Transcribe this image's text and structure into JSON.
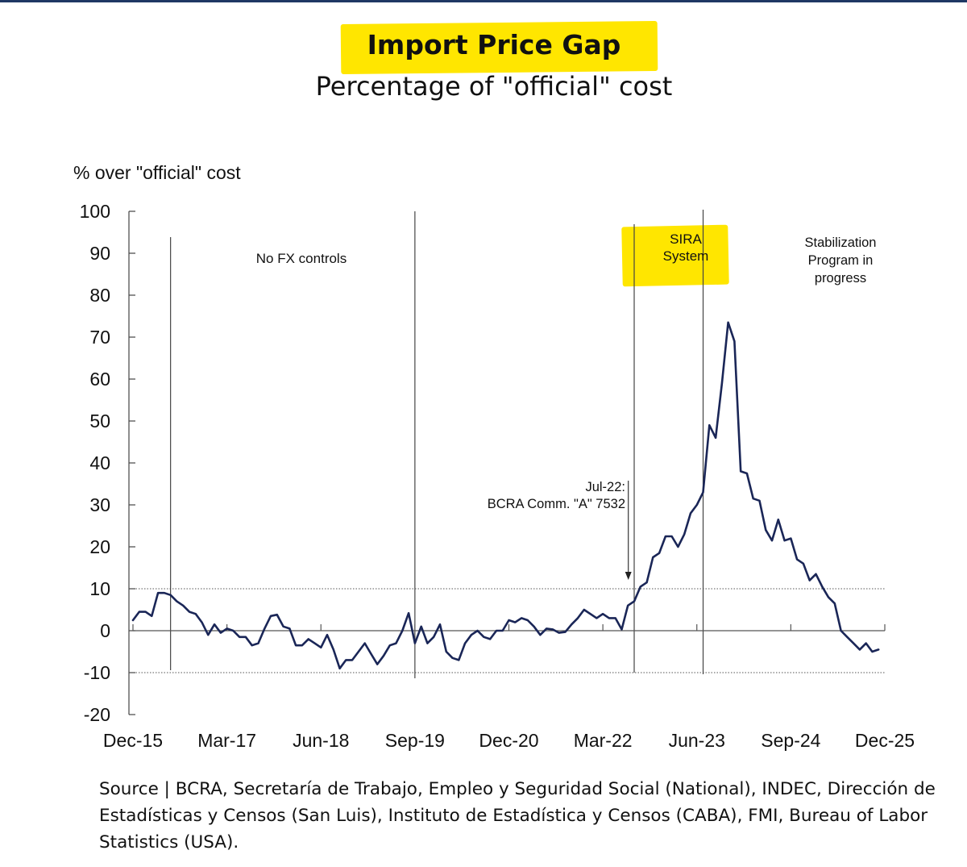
{
  "chart_data": {
    "type": "line",
    "title": "Import Price Gap",
    "subtitle": "Percentage of \"official\" cost",
    "ylabel": "% over \"official\" cost",
    "xlabel": "",
    "ylim": [
      -20,
      100
    ],
    "y_ticks": [
      100,
      90,
      80,
      70,
      60,
      50,
      40,
      30,
      20,
      10,
      0,
      -10,
      -20
    ],
    "x_tick_labels": [
      "Dec-15",
      "Mar-17",
      "Jun-18",
      "Sep-19",
      "Dec-20",
      "Mar-22",
      "Jun-23",
      "Sep-24",
      "Dec-25"
    ],
    "x_range_months": [
      0,
      120
    ],
    "reference_lines": [
      10,
      -10
    ],
    "period_dividers_months": [
      6,
      45,
      80,
      91
    ],
    "regions": [
      {
        "name": "no-fx",
        "label": "No FX controls"
      },
      {
        "name": "sira",
        "label_lines": [
          "SIRA",
          "System"
        ]
      },
      {
        "name": "stabilization",
        "label_lines": [
          "Stabilization",
          "Program in",
          "progress"
        ]
      }
    ],
    "annotation": {
      "label_lines": [
        "Jul-22:",
        "BCRA Comm. \"A\" 7532"
      ],
      "month": 79
    },
    "series": [
      {
        "name": "Import price gap",
        "color": "#1a2657",
        "points": [
          [
            0,
            2.5
          ],
          [
            1,
            4.5
          ],
          [
            2,
            4.5
          ],
          [
            3,
            3.5
          ],
          [
            4,
            9
          ],
          [
            5,
            9
          ],
          [
            6,
            8.5
          ],
          [
            7,
            7
          ],
          [
            8,
            6
          ],
          [
            9,
            4.5
          ],
          [
            10,
            4
          ],
          [
            11,
            2
          ],
          [
            12,
            -1
          ],
          [
            13,
            1.5
          ],
          [
            14,
            -0.5
          ],
          [
            15,
            0.5
          ],
          [
            16,
            0
          ],
          [
            17,
            -1.5
          ],
          [
            18,
            -1.5
          ],
          [
            19,
            -3.5
          ],
          [
            20,
            -3
          ],
          [
            21,
            0.5
          ],
          [
            22,
            3.5
          ],
          [
            23,
            3.8
          ],
          [
            24,
            1
          ],
          [
            25,
            0.5
          ],
          [
            26,
            -3.5
          ],
          [
            27,
            -3.5
          ],
          [
            28,
            -2
          ],
          [
            29,
            -3
          ],
          [
            30,
            -4
          ],
          [
            31,
            -1
          ],
          [
            32,
            -4.5
          ],
          [
            33,
            -9
          ],
          [
            34,
            -7
          ],
          [
            35,
            -7
          ],
          [
            36,
            -5
          ],
          [
            37,
            -3
          ],
          [
            38,
            -5.5
          ],
          [
            39,
            -8
          ],
          [
            40,
            -6
          ],
          [
            41,
            -3.5
          ],
          [
            42,
            -3
          ],
          [
            43,
            0
          ],
          [
            44,
            4.2
          ],
          [
            45,
            -3
          ],
          [
            46,
            1
          ],
          [
            47,
            -3
          ],
          [
            48,
            -1.5
          ],
          [
            49,
            1.5
          ],
          [
            50,
            -5
          ],
          [
            51,
            -6.5
          ],
          [
            52,
            -7
          ],
          [
            53,
            -3
          ],
          [
            54,
            -1
          ],
          [
            55,
            0
          ],
          [
            56,
            -1.5
          ],
          [
            57,
            -2
          ],
          [
            58,
            0
          ],
          [
            59,
            0
          ],
          [
            60,
            2.5
          ],
          [
            61,
            2
          ],
          [
            62,
            3
          ],
          [
            63,
            2.5
          ],
          [
            64,
            1
          ],
          [
            65,
            -1
          ],
          [
            66,
            0.5
          ],
          [
            67,
            0.3
          ],
          [
            68,
            -0.5
          ],
          [
            69,
            -0.3
          ],
          [
            70,
            1.5
          ],
          [
            71,
            3
          ],
          [
            72,
            5
          ],
          [
            73,
            4
          ],
          [
            74,
            3
          ],
          [
            75,
            4
          ],
          [
            76,
            3
          ],
          [
            77,
            3
          ],
          [
            78,
            0.3
          ],
          [
            79,
            6
          ],
          [
            80,
            7
          ],
          [
            81,
            10.5
          ],
          [
            82,
            11.5
          ],
          [
            83,
            17.5
          ],
          [
            84,
            18.5
          ],
          [
            85,
            22.5
          ],
          [
            86,
            22.5
          ],
          [
            87,
            20
          ],
          [
            88,
            23
          ],
          [
            89,
            28
          ],
          [
            90,
            30
          ],
          [
            91,
            33
          ],
          [
            92,
            49
          ],
          [
            93,
            46
          ],
          [
            94,
            59
          ],
          [
            95,
            73.5
          ],
          [
            96,
            69
          ],
          [
            97,
            38
          ],
          [
            98,
            37.5
          ],
          [
            99,
            31.5
          ],
          [
            100,
            31
          ],
          [
            101,
            24
          ],
          [
            102,
            21.5
          ],
          [
            103,
            26.5
          ],
          [
            104,
            21.5
          ],
          [
            105,
            22
          ],
          [
            106,
            17
          ],
          [
            107,
            16
          ],
          [
            108,
            12
          ],
          [
            109,
            13.5
          ],
          [
            110,
            10.5
          ],
          [
            111,
            8
          ],
          [
            112,
            6.5
          ],
          [
            113,
            0
          ],
          [
            114,
            -1.5
          ],
          [
            115,
            -3
          ],
          [
            116,
            -4.5
          ],
          [
            117,
            -3
          ],
          [
            118,
            -5
          ],
          [
            119,
            -4.5
          ]
        ]
      }
    ]
  },
  "source_text": "Source | BCRA, Secretaría de Trabajo, Empleo y Seguridad Social (National), INDEC, Dirección de Estadísticas y Censos (San Luis), Instituto de Estadística y Censos (CABA), FMI, Bureau of Labor Statistics (USA)."
}
